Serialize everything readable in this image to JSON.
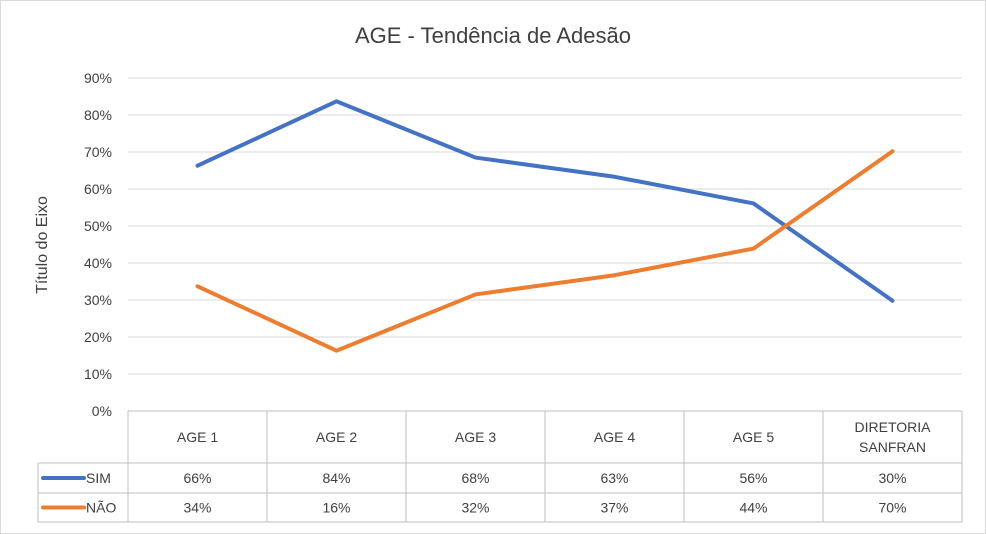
{
  "chart_data": {
    "type": "line",
    "title": "AGE - Tendência  de Adesão",
    "ylabel": "Título do Eixo",
    "xlabel": "",
    "ylim": [
      0,
      90
    ],
    "yticks": [
      "0%",
      "10%",
      "20%",
      "30%",
      "40%",
      "50%",
      "60%",
      "70%",
      "80%",
      "90%"
    ],
    "categories": [
      [
        "AGE 1"
      ],
      [
        "AGE 2"
      ],
      [
        "AGE 3"
      ],
      [
        "AGE 4"
      ],
      [
        "AGE 5"
      ],
      [
        "DIRETORIA",
        "SANFRAN"
      ]
    ],
    "grid": true,
    "legend": "data-table",
    "series": [
      {
        "name": "SIM",
        "color": "#4472c4",
        "values": [
          66.3,
          83.7,
          68.5,
          63.3,
          56.1,
          29.8
        ],
        "labels": [
          "66%",
          "84%",
          "68%",
          "63%",
          "56%",
          "30%"
        ]
      },
      {
        "name": "NÃO",
        "color": "#ed7d31",
        "values": [
          33.7,
          16.3,
          31.5,
          36.7,
          43.9,
          70.2
        ],
        "labels": [
          "34%",
          "16%",
          "32%",
          "37%",
          "44%",
          "70%"
        ]
      }
    ]
  }
}
